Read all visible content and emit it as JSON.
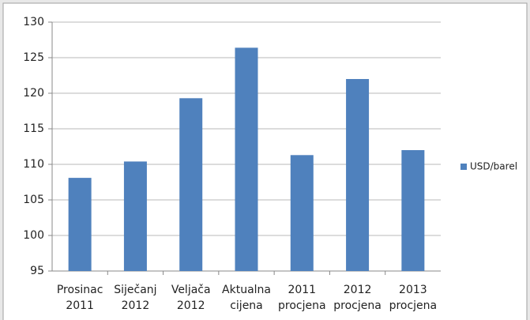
{
  "chart_data": {
    "type": "bar",
    "categories": [
      [
        "Prosinac",
        "2011"
      ],
      [
        "Siječanj",
        "2012"
      ],
      [
        "Veljača",
        "2012"
      ],
      [
        "Aktualna",
        "cijena"
      ],
      [
        "2011",
        "procjena"
      ],
      [
        "2012",
        "procjena"
      ],
      [
        "2013",
        "procjena"
      ]
    ],
    "series": [
      {
        "name": "USD/barel",
        "color": "#4f81bd",
        "values": [
          108.1,
          110.4,
          119.3,
          126.4,
          111.3,
          122.0,
          112.0
        ]
      }
    ],
    "ylim": [
      95,
      130
    ],
    "yticks": [
      95,
      100,
      105,
      110,
      115,
      120,
      125,
      130
    ],
    "grid": true,
    "legend": "right"
  }
}
